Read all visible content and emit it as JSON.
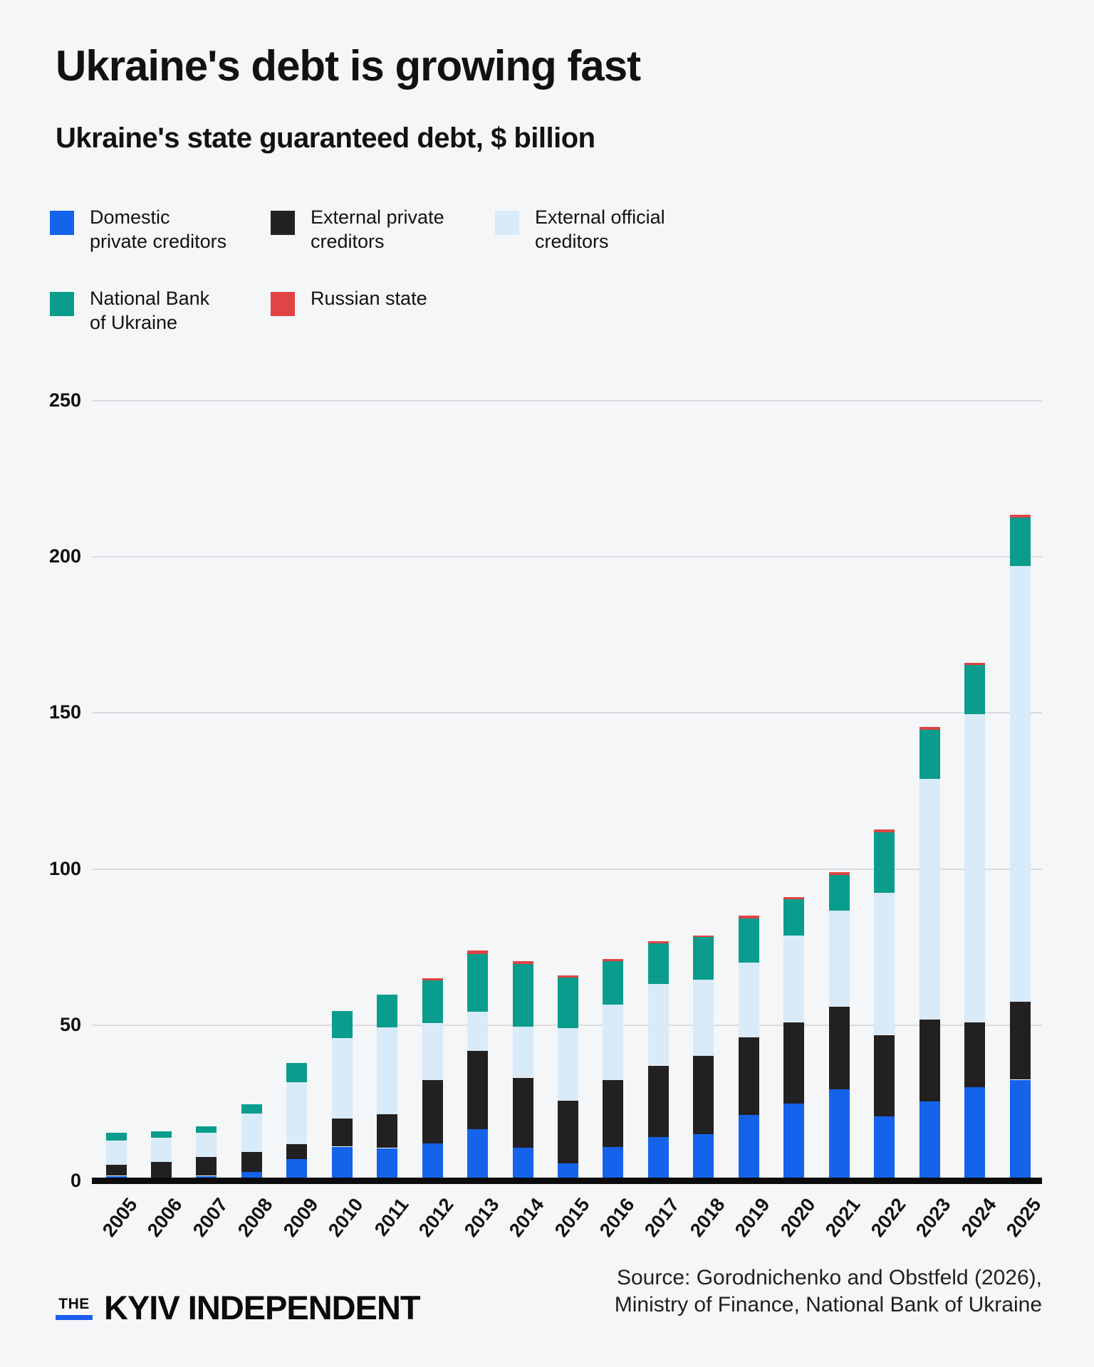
{
  "header": {
    "title": "Ukraine's debt is growing fast",
    "subtitle": "Ukraine's state guaranteed debt, $ billion"
  },
  "legend": {
    "items": [
      {
        "label": "Domestic\nprivate creditors",
        "color": "#1463ea"
      },
      {
        "label": "External private\ncreditors",
        "color": "#232021"
      },
      {
        "label": "External official\ncreditors",
        "color": "#d9eaf8"
      },
      {
        "label": "National Bank\nof Ukraine",
        "color": "#0a9c8c"
      },
      {
        "label": "Russian state",
        "color": "#e04444"
      }
    ]
  },
  "chart_data": {
    "type": "bar",
    "stacked": true,
    "title": "Ukraine's state guaranteed debt, $ billion",
    "xlabel": "",
    "ylabel": "",
    "ylim": [
      0,
      250
    ],
    "yticks": [
      0,
      50,
      100,
      150,
      200,
      250
    ],
    "grid": true,
    "legend_position": "top",
    "categories": [
      "2005",
      "2006",
      "2007",
      "2008",
      "2009",
      "2010",
      "2011",
      "2012",
      "2013",
      "2014",
      "2015",
      "2016",
      "2017",
      "2018",
      "2019",
      "2020",
      "2021",
      "2022",
      "2023",
      "2024",
      "2025"
    ],
    "series": [
      {
        "name": "Domestic private creditors",
        "color": "#1463ea",
        "values": [
          1.7,
          1.0,
          1.7,
          3.1,
          7.1,
          11.0,
          10.6,
          12.1,
          16.8,
          10.8,
          5.6,
          11.0,
          14.3,
          15.1,
          21.2,
          24.9,
          29.4,
          20.7,
          25.6,
          30.1,
          32.5
        ]
      },
      {
        "name": "External private creditors",
        "color": "#232021",
        "values": [
          3.5,
          5.2,
          6.0,
          6.3,
          4.8,
          9.0,
          10.8,
          20.4,
          25.0,
          22.3,
          20.3,
          21.4,
          22.7,
          25.1,
          25.0,
          26.0,
          26.4,
          26.1,
          26.2,
          20.7,
          24.9
        ]
      },
      {
        "name": "External official creditors",
        "color": "#d9eaf8",
        "values": [
          7.6,
          7.6,
          7.7,
          12.3,
          19.8,
          26.0,
          27.8,
          18.0,
          12.5,
          16.3,
          23.2,
          24.1,
          26.3,
          24.4,
          23.9,
          27.7,
          30.8,
          45.5,
          77.0,
          98.8,
          139.7
        ]
      },
      {
        "name": "National Bank of Ukraine",
        "color": "#0a9c8c",
        "values": [
          2.6,
          2.1,
          2.1,
          2.9,
          6.1,
          8.6,
          10.6,
          14.0,
          18.5,
          20.1,
          16.2,
          14.1,
          12.9,
          13.7,
          14.1,
          11.7,
          11.5,
          19.5,
          16.0,
          15.7,
          15.5
        ]
      },
      {
        "name": "Russian state",
        "color": "#e04444",
        "values": [
          0,
          0,
          0,
          0,
          0,
          0,
          0,
          0.6,
          1.2,
          1.0,
          0.7,
          0.6,
          0.7,
          0.5,
          0.8,
          0.7,
          0.8,
          0.8,
          0.8,
          0.7,
          0.9
        ]
      }
    ]
  },
  "footer": {
    "logo_the": "THE",
    "logo_name": "KYIV INDEPENDENT",
    "logo_accent": "#1b5ef0",
    "source_line1": "Source: Gorodnichenko and Obstfeld (2026),",
    "source_line2": "Ministry of Finance, National Bank of Ukraine"
  }
}
